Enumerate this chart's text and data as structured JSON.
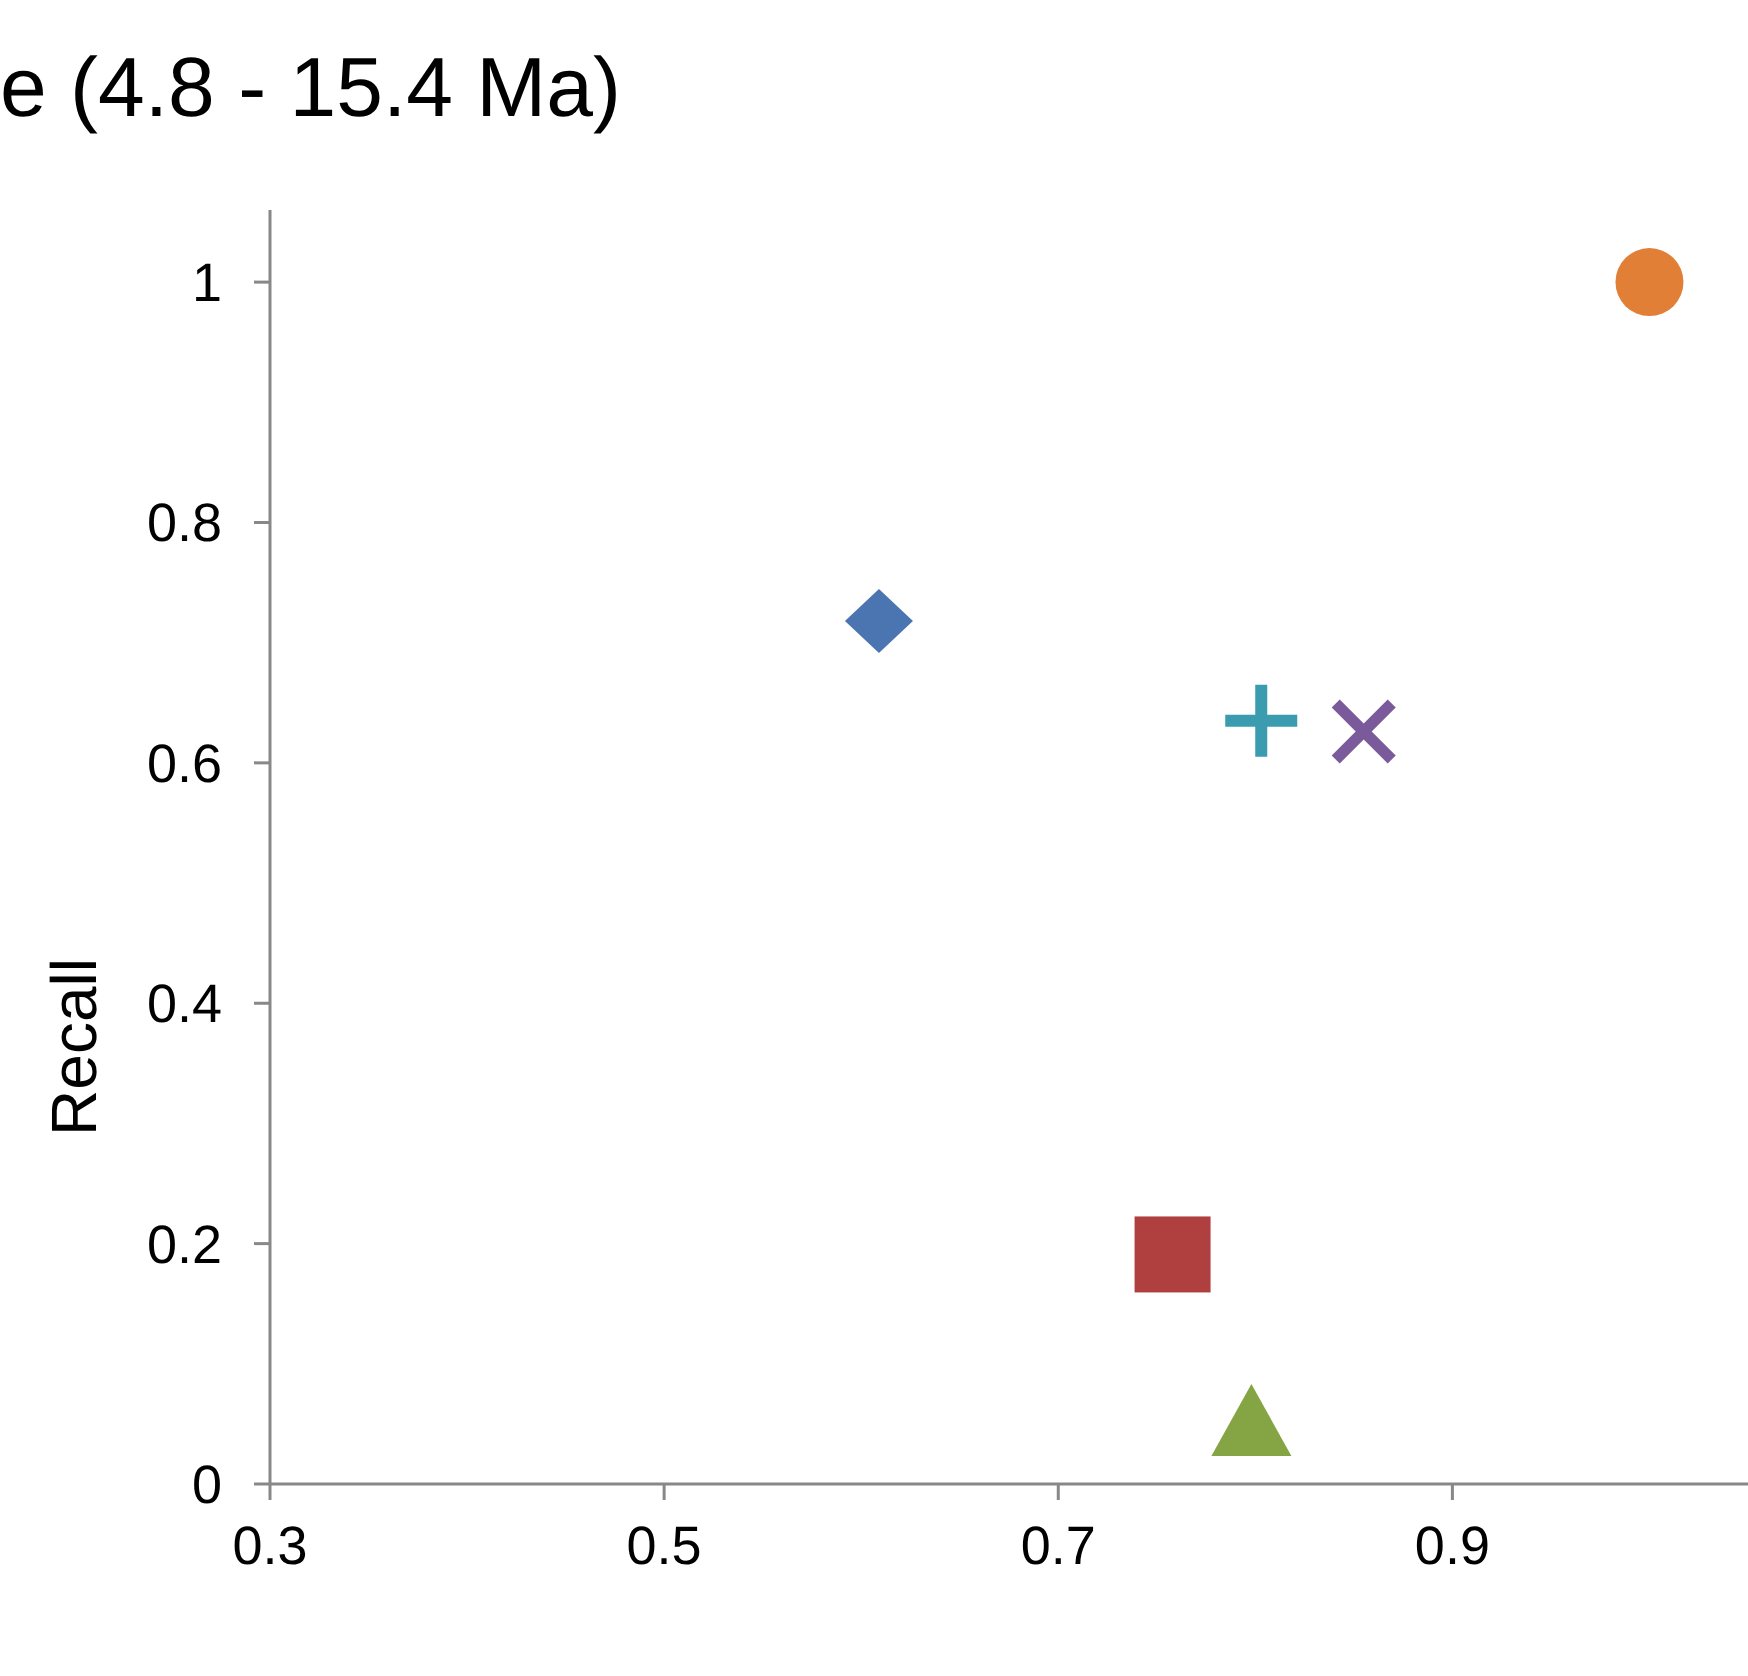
{
  "chart_data": {
    "type": "scatter",
    "title": "e (4.8 - 15.4 Ma)",
    "ylabel": "Recall",
    "xlim": [
      0.3,
      1.05
    ],
    "xticks": [
      0.3,
      0.5,
      0.7,
      0.9
    ],
    "ylim": [
      0,
      1.06
    ],
    "yticks": [
      0,
      0.2,
      0.4,
      0.6,
      0.8,
      1
    ],
    "grid": false,
    "series": [
      {
        "marker": "diamond",
        "color": "#4a75b0",
        "x": [
          0.609
        ],
        "values": [
          0.718
        ]
      },
      {
        "marker": "circle",
        "color": "#e07f35",
        "x": [
          1.0
        ],
        "values": [
          1.0
        ]
      },
      {
        "marker": "plus",
        "color": "#3b9cb0",
        "x": [
          0.803
        ],
        "values": [
          0.635
        ]
      },
      {
        "marker": "cross",
        "color": "#7a5a9a",
        "x": [
          0.855
        ],
        "values": [
          0.626
        ]
      },
      {
        "marker": "square",
        "color": "#b04040",
        "x": [
          0.758
        ],
        "values": [
          0.191
        ]
      },
      {
        "marker": "triangle",
        "color": "#85a544",
        "x": [
          0.798
        ],
        "values": [
          0.05
        ]
      }
    ]
  }
}
